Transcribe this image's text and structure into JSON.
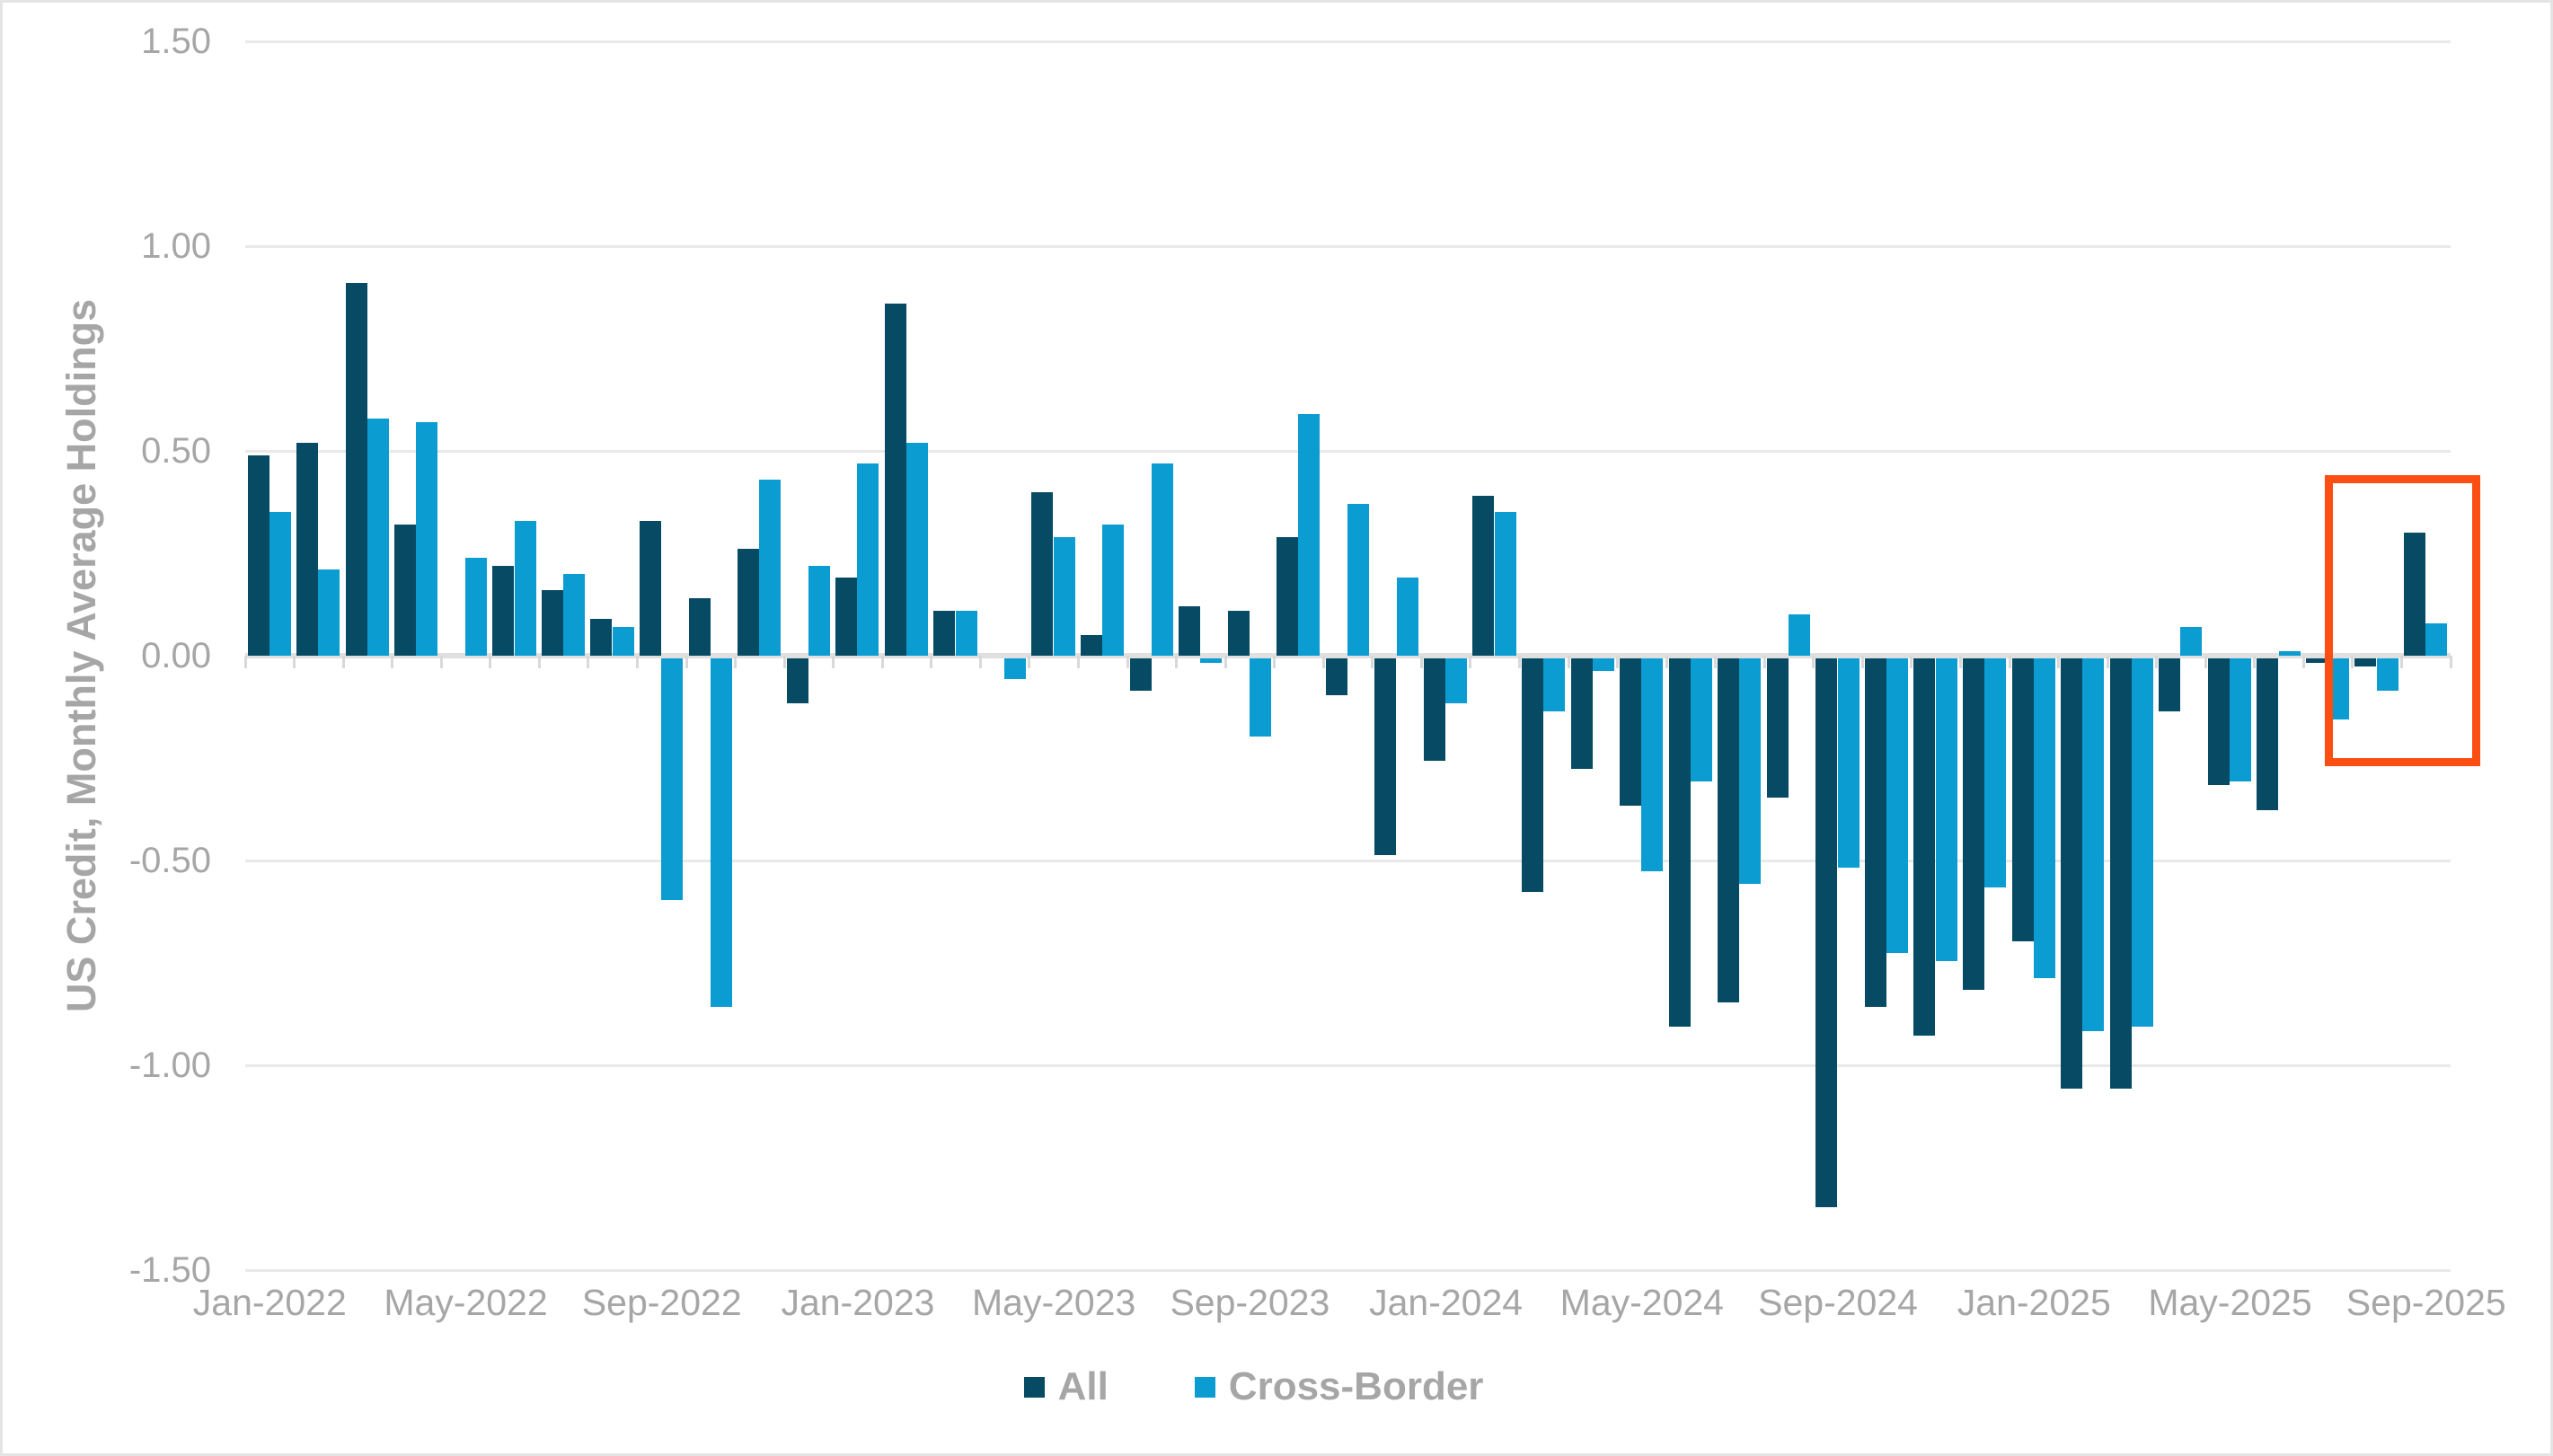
{
  "chart_data": {
    "type": "bar",
    "title": "",
    "ylabel": "US Credit, Monthly Average Holdings",
    "xlabel": "",
    "ylim": [
      -1.5,
      1.5
    ],
    "ytick_step": 0.5,
    "ytick_labels": [
      "1.50",
      "1.00",
      "0.50",
      "0.00",
      "-0.50",
      "-1.00",
      "-1.50"
    ],
    "ytick_values": [
      1.5,
      1.0,
      0.5,
      0.0,
      -0.5,
      -1.0,
      -1.5
    ],
    "grid": true,
    "legend_position": "bottom",
    "categories": [
      "Jan-2022",
      "Feb-2022",
      "Mar-2022",
      "Apr-2022",
      "May-2022",
      "Jun-2022",
      "Jul-2022",
      "Aug-2022",
      "Sep-2022",
      "Oct-2022",
      "Nov-2022",
      "Dec-2022",
      "Jan-2023",
      "Feb-2023",
      "Mar-2023",
      "Apr-2023",
      "May-2023",
      "Jun-2023",
      "Jul-2023",
      "Aug-2023",
      "Sep-2023",
      "Oct-2023",
      "Nov-2023",
      "Dec-2023",
      "Jan-2024",
      "Feb-2024",
      "Mar-2024",
      "Apr-2024",
      "May-2024",
      "Jun-2024",
      "Jul-2024",
      "Aug-2024",
      "Sep-2024",
      "Oct-2024",
      "Nov-2024",
      "Dec-2024",
      "Jan-2025",
      "Feb-2025",
      "Mar-2025",
      "Apr-2025",
      "May-2025",
      "Jun-2025",
      "Jul-2025",
      "Aug-2025",
      "Sep-2025"
    ],
    "xtick_labels": [
      "Jan-2022",
      "May-2022",
      "Sep-2022",
      "Jan-2023",
      "May-2023",
      "Sep-2023",
      "Jan-2024",
      "May-2024",
      "Sep-2024",
      "Jan-2025",
      "May-2025",
      "Sep-2025"
    ],
    "xtick_every_n_months": 4,
    "series": [
      {
        "name": "All",
        "color": "#064a63",
        "values": [
          0.49,
          0.52,
          0.91,
          0.32,
          null,
          0.22,
          0.16,
          0.09,
          0.33,
          0.14,
          0.26,
          -0.11,
          0.19,
          0.86,
          0.11,
          null,
          0.4,
          0.05,
          -0.08,
          0.12,
          0.11,
          0.29,
          -0.09,
          -0.48,
          -0.25,
          0.39,
          -0.57,
          -0.27,
          -0.36,
          -0.9,
          -0.84,
          -0.34,
          -1.34,
          -0.85,
          -0.92,
          -0.81,
          -0.69,
          -1.05,
          -1.05,
          -0.13,
          -0.31,
          -0.37,
          -0.01,
          -0.02,
          0.3
        ]
      },
      {
        "name": "Cross-Border",
        "color": "#0b9cd2",
        "values": [
          0.35,
          0.21,
          0.58,
          0.57,
          0.24,
          0.33,
          0.2,
          0.07,
          -0.59,
          -0.85,
          0.43,
          0.22,
          0.47,
          0.52,
          0.11,
          -0.05,
          0.29,
          0.32,
          0.47,
          -0.01,
          -0.19,
          0.59,
          0.37,
          0.19,
          -0.11,
          0.35,
          -0.13,
          -0.03,
          -0.52,
          -0.3,
          -0.55,
          0.1,
          -0.51,
          -0.72,
          -0.74,
          -0.56,
          -0.78,
          -0.91,
          -0.9,
          0.07,
          -0.3,
          0.01,
          -0.15,
          -0.08,
          0.08
        ]
      }
    ],
    "highlight_box": {
      "description": "orange rectangle highlighting Jul-2025 (Cross-Border) through Sep-2025",
      "month_start": 42.44,
      "month_end": 45.6,
      "value_top": 0.44,
      "value_bottom": -0.27,
      "color": "#fb4e13"
    }
  },
  "colors": {
    "background": "#ffffff",
    "gridline": "#e9e9e9",
    "zero_axis": "#e0e0e0",
    "tick": "#d9d9d9",
    "text": "#a6a6a6",
    "frame_border": "#e4e4e4"
  }
}
